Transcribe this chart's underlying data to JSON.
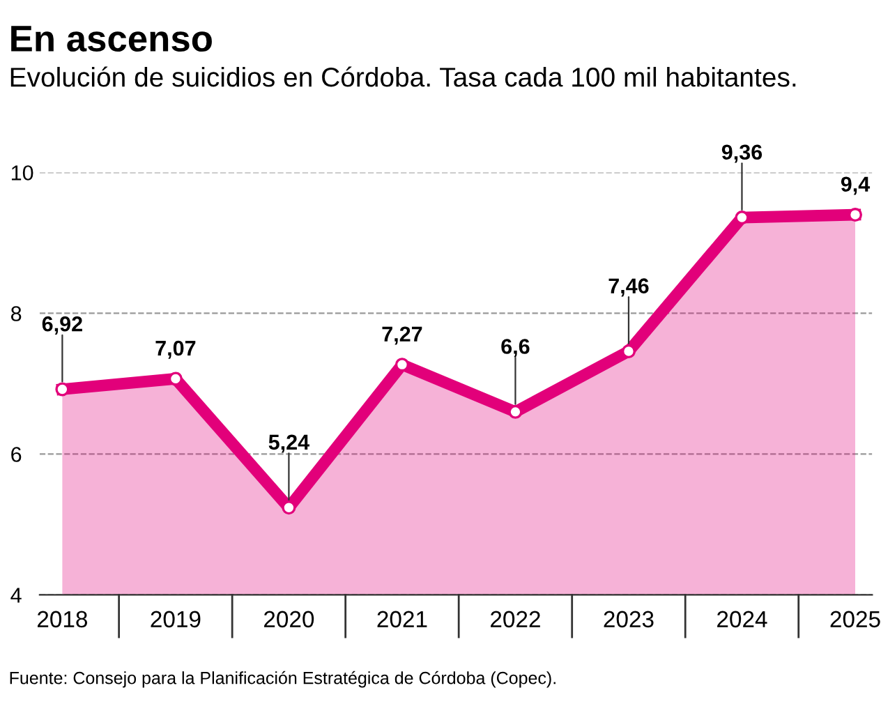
{
  "chart_data": {
    "type": "area",
    "title": "En ascenso",
    "subtitle": "Evolución de suicidios en Córdoba. Tasa cada 100 mil habitantes.",
    "categories": [
      "2018",
      "2019",
      "2020",
      "2021",
      "2022",
      "2023",
      "2024",
      "2025"
    ],
    "series": [
      {
        "color": "#e2007a",
        "values": [
          6.92,
          7.07,
          5.24,
          7.27,
          6.6,
          7.46,
          9.36,
          9.4
        ],
        "value_labels": [
          "6,92",
          "7,07",
          "5,24",
          "7,27",
          "6,6",
          "7,46",
          "9,36",
          "9,4"
        ]
      }
    ],
    "ylim": [
      4,
      10
    ],
    "yticks": [
      4,
      6,
      8,
      10
    ],
    "grid": "y",
    "marker": "circle",
    "line_style": "solid",
    "annotations": [
      "Fuente: Consejo para la Planificación Estratégica de Córdoba (Copec)."
    ]
  }
}
